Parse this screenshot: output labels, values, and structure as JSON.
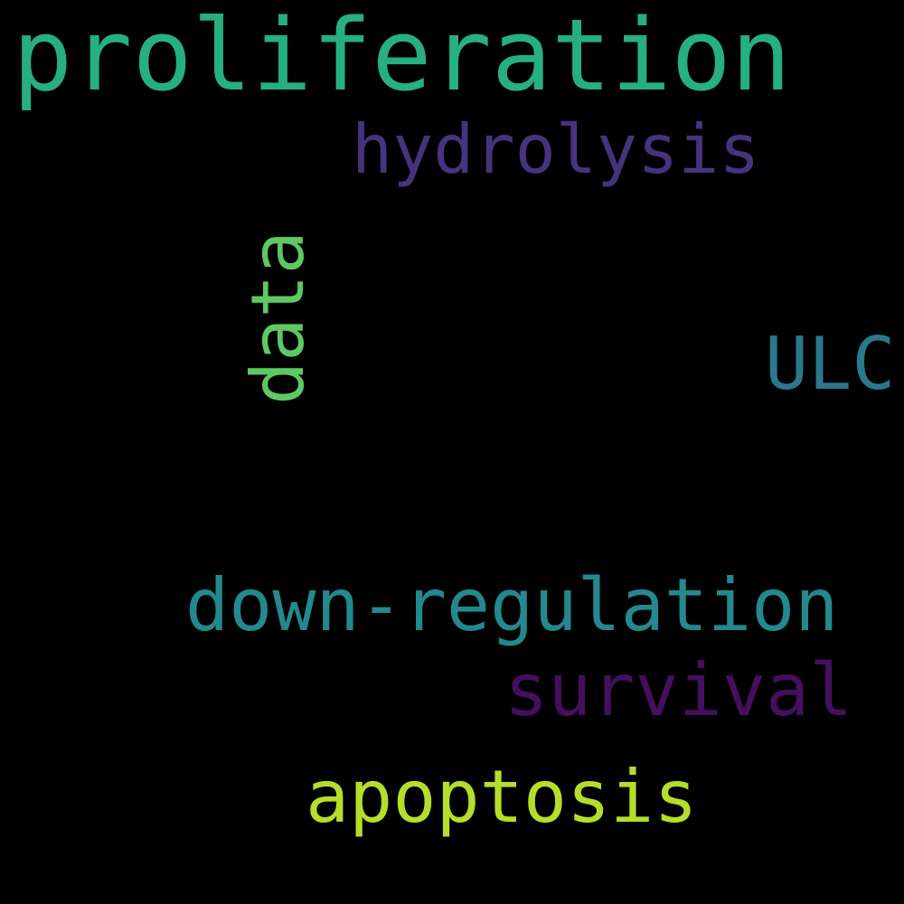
{
  "background": "#000000",
  "words": [
    {
      "id": "w-proliferation",
      "text": "proliferation",
      "color": "#26b07f"
    },
    {
      "id": "w-hydrolysis",
      "text": "hydrolysis",
      "color": "#46337e"
    },
    {
      "id": "w-data",
      "text": "data",
      "color": "#5ec962"
    },
    {
      "id": "w-ulc",
      "text": "ULC",
      "color": "#2a788e"
    },
    {
      "id": "w-downreg",
      "text": "down-regulation",
      "color": "#23898e"
    },
    {
      "id": "w-survival",
      "text": "survival",
      "color": "#440f5e"
    },
    {
      "id": "w-apoptosis",
      "text": "apoptosis",
      "color": "#b5de2b"
    }
  ]
}
